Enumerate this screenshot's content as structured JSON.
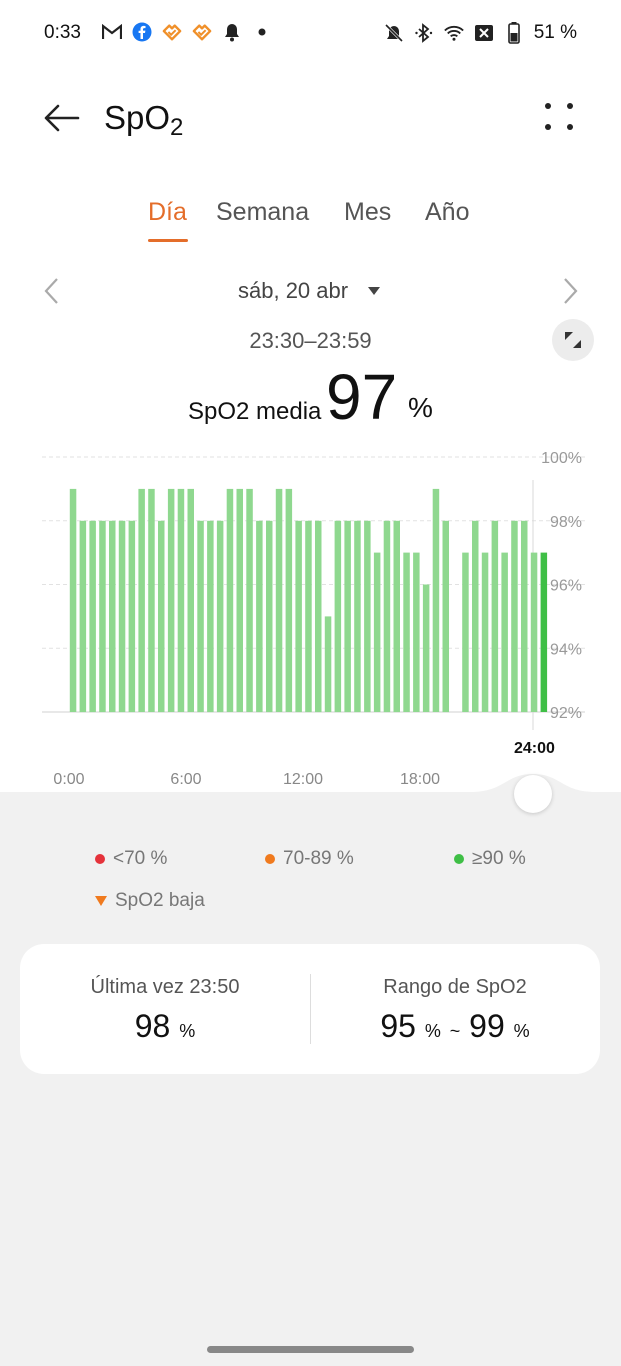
{
  "status_bar": {
    "time": "0:33",
    "icons_left": [
      "gmail-icon",
      "facebook-icon",
      "health-app-icon",
      "health-app-icon",
      "bell-icon",
      "dot-icon"
    ],
    "icons_right": [
      "mute-icon",
      "bluetooth-icon",
      "wifi-icon",
      "no-sim-icon",
      "battery-icon"
    ],
    "battery": "51 %"
  },
  "header": {
    "title_main": "SpO",
    "title_sub": "2"
  },
  "tabs": [
    {
      "label": "Día",
      "active": true
    },
    {
      "label": "Semana",
      "active": false
    },
    {
      "label": "Mes",
      "active": false
    },
    {
      "label": "Año",
      "active": false
    }
  ],
  "date_selector": {
    "date": "sáb, 20 abr"
  },
  "summary": {
    "time_range": "23:30–23:59",
    "avg_label": "SpO2 media",
    "avg_value": "97",
    "avg_unit": "%"
  },
  "chart_data": {
    "type": "bar",
    "ylim": [
      92,
      100
    ],
    "y_ticks": [
      "100%",
      "98%",
      "96%",
      "94%",
      "92%"
    ],
    "y_tick_values": [
      100,
      98,
      96,
      94,
      92
    ],
    "x_ticks": [
      "0:00",
      "6:00",
      "12:00",
      "18:00"
    ],
    "x_tick_hours": [
      0,
      6,
      12,
      18
    ],
    "x_range_hours": [
      0,
      24
    ],
    "values": [
      99,
      98,
      98,
      98,
      98,
      98,
      98,
      99,
      99,
      98,
      99,
      99,
      99,
      98,
      98,
      98,
      99,
      99,
      99,
      98,
      98,
      99,
      99,
      98,
      98,
      98,
      95,
      98,
      98,
      98,
      98,
      97,
      98,
      98,
      97,
      97,
      96,
      99,
      98,
      null,
      97,
      98,
      97,
      98,
      97,
      98,
      98,
      97,
      97
    ],
    "highlight_index": 48,
    "bar_color": "#8fd88f",
    "highlight_color": "#3fbf46",
    "selected_time": "24:00"
  },
  "legend": [
    {
      "label": "<70 %",
      "color": "#e5323b",
      "shape": "dot"
    },
    {
      "label": "70-89 %",
      "color": "#f07a1e",
      "shape": "dot"
    },
    {
      "label": "≥90 %",
      "color": "#3fbf46",
      "shape": "dot"
    },
    {
      "label": "SpO2 baja",
      "color": "#f07a1e",
      "shape": "triangle"
    }
  ],
  "card": {
    "last_label": "Última vez 23:50",
    "last_value": "98",
    "last_unit": "%",
    "range_label": "Rango de SpO2",
    "range_min": "95",
    "range_max": "99",
    "range_unit": "%",
    "range_sep": "~"
  }
}
